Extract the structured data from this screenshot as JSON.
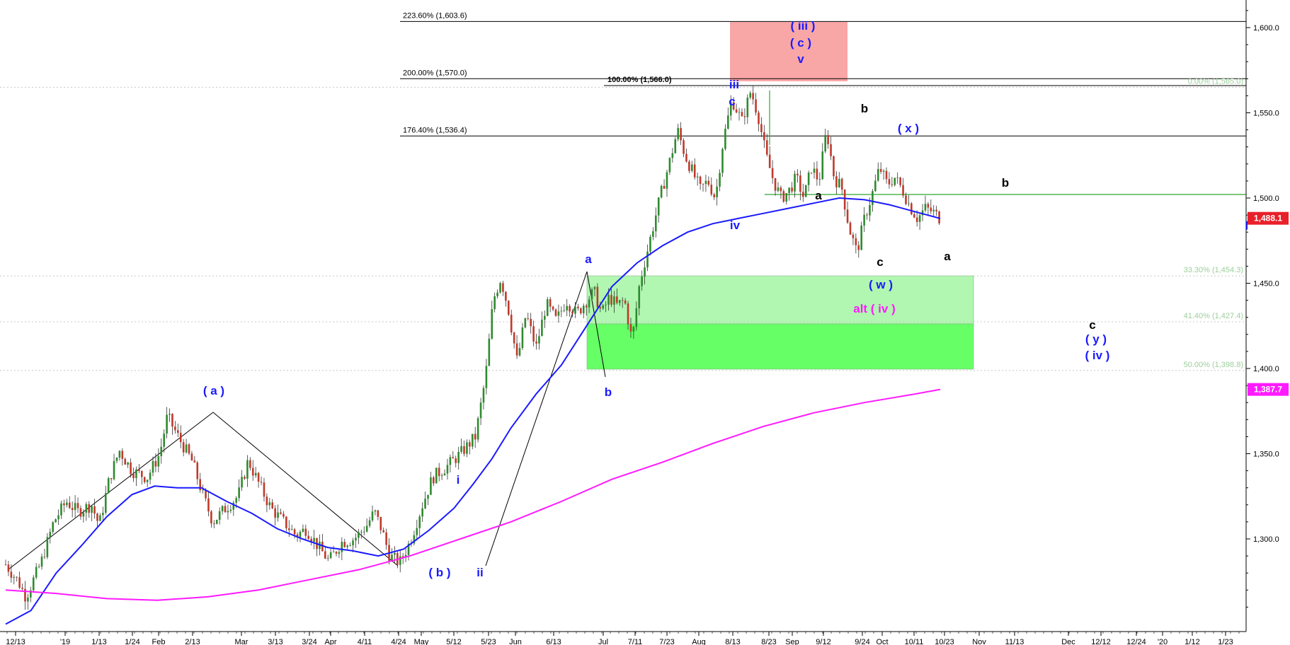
{
  "chart_data": {
    "type": "candlestick",
    "title": "",
    "xlabel": "",
    "ylabel": "",
    "ylim": [
      1250,
      1620
    ],
    "y_ticks": [
      "1,300.0",
      "1,350.0",
      "1,400.0",
      "1,450.0",
      "1,500.0",
      "1,550.0",
      "1,600.0"
    ],
    "x_ticks": [
      "12/13",
      "'19",
      "1/13",
      "1/24",
      "Feb",
      "2/13",
      "Mar",
      "3/13",
      "3/24",
      "Apr",
      "4/11",
      "4/24",
      "May",
      "5/12",
      "5/23",
      "Jun",
      "6/13",
      "Jul",
      "7/11",
      "7/23",
      "Aug",
      "8/13",
      "8/23",
      "Sep",
      "9/12",
      "9/24",
      "Oct",
      "10/11",
      "10/23",
      "Nov",
      "11/13",
      "Dec",
      "12/12",
      "12/24",
      "'20",
      "1/12",
      "1/23"
    ],
    "price_path": [
      [
        0,
        1285
      ],
      [
        10,
        1275
      ],
      [
        16,
        1266
      ],
      [
        28,
        1286
      ],
      [
        38,
        1310
      ],
      [
        48,
        1322
      ],
      [
        57,
        1316
      ],
      [
        68,
        1320
      ],
      [
        74,
        1308
      ],
      [
        82,
        1335
      ],
      [
        90,
        1352
      ],
      [
        100,
        1340
      ],
      [
        112,
        1336
      ],
      [
        122,
        1350
      ],
      [
        128,
        1372
      ],
      [
        138,
        1358
      ],
      [
        148,
        1345
      ],
      [
        156,
        1326
      ],
      [
        164,
        1310
      ],
      [
        174,
        1318
      ],
      [
        184,
        1325
      ],
      [
        192,
        1346
      ],
      [
        202,
        1330
      ],
      [
        210,
        1318
      ],
      [
        220,
        1310
      ],
      [
        230,
        1302
      ],
      [
        238,
        1306
      ],
      [
        248,
        1295
      ],
      [
        256,
        1287
      ],
      [
        266,
        1298
      ],
      [
        276,
        1300
      ],
      [
        286,
        1308
      ],
      [
        292,
        1316
      ],
      [
        298,
        1305
      ],
      [
        304,
        1290
      ],
      [
        312,
        1286
      ],
      [
        320,
        1298
      ],
      [
        330,
        1320
      ],
      [
        338,
        1336
      ],
      [
        350,
        1343
      ],
      [
        360,
        1350
      ],
      [
        372,
        1360
      ],
      [
        380,
        1395
      ],
      [
        386,
        1440
      ],
      [
        392,
        1453
      ],
      [
        398,
        1435
      ],
      [
        405,
        1404
      ],
      [
        412,
        1432
      ],
      [
        420,
        1412
      ],
      [
        428,
        1438
      ],
      [
        436,
        1428
      ],
      [
        444,
        1440
      ],
      [
        452,
        1432
      ],
      [
        460,
        1440
      ],
      [
        466,
        1445
      ],
      [
        472,
        1432
      ],
      [
        478,
        1442
      ],
      [
        484,
        1437
      ],
      [
        490,
        1440
      ],
      [
        496,
        1416
      ],
      [
        502,
        1450
      ],
      [
        510,
        1475
      ],
      [
        518,
        1500
      ],
      [
        526,
        1522
      ],
      [
        532,
        1540
      ],
      [
        538,
        1525
      ],
      [
        544,
        1515
      ],
      [
        550,
        1505
      ],
      [
        556,
        1510
      ],
      [
        562,
        1500
      ],
      [
        568,
        1533
      ],
      [
        575,
        1558
      ],
      [
        583,
        1545
      ],
      [
        590,
        1563
      ],
      [
        596,
        1548
      ],
      [
        602,
        1525
      ],
      [
        608,
        1510
      ],
      [
        614,
        1500
      ],
      [
        620,
        1504
      ],
      [
        626,
        1512
      ],
      [
        632,
        1500
      ],
      [
        638,
        1518
      ],
      [
        644,
        1510
      ],
      [
        650,
        1540
      ],
      [
        656,
        1512
      ],
      [
        662,
        1506
      ],
      [
        668,
        1482
      ],
      [
        674,
        1468
      ],
      [
        680,
        1488
      ],
      [
        686,
        1502
      ],
      [
        692,
        1518
      ],
      [
        698,
        1508
      ],
      [
        704,
        1512
      ],
      [
        710,
        1505
      ],
      [
        716,
        1495
      ],
      [
        722,
        1488
      ],
      [
        728,
        1494
      ],
      [
        734,
        1492
      ],
      [
        740,
        1488
      ]
    ],
    "series": [
      {
        "name": "",
        "color": "#1a1aff",
        "points": [
          [
            0,
            1250
          ],
          [
            20,
            1258
          ],
          [
            40,
            1280
          ],
          [
            60,
            1296
          ],
          [
            80,
            1313
          ],
          [
            100,
            1326
          ],
          [
            118,
            1331
          ],
          [
            136,
            1330
          ],
          [
            155,
            1330
          ],
          [
            175,
            1322
          ],
          [
            195,
            1315
          ],
          [
            215,
            1306
          ],
          [
            235,
            1300
          ],
          [
            255,
            1295
          ],
          [
            275,
            1293
          ],
          [
            295,
            1290
          ],
          [
            315,
            1294
          ],
          [
            335,
            1305
          ],
          [
            355,
            1318
          ],
          [
            370,
            1332
          ],
          [
            385,
            1347
          ],
          [
            400,
            1365
          ],
          [
            420,
            1385
          ],
          [
            440,
            1402
          ],
          [
            460,
            1425
          ],
          [
            480,
            1448
          ],
          [
            500,
            1462
          ],
          [
            520,
            1472
          ],
          [
            540,
            1480
          ],
          [
            560,
            1485
          ],
          [
            580,
            1488
          ],
          [
            600,
            1491
          ],
          [
            620,
            1494
          ],
          [
            640,
            1497
          ],
          [
            660,
            1500
          ],
          [
            680,
            1499
          ],
          [
            700,
            1496
          ],
          [
            720,
            1492
          ],
          [
            740,
            1488
          ]
        ]
      },
      {
        "name": "",
        "color": "#ff1aff",
        "points": [
          [
            0,
            1270
          ],
          [
            40,
            1268
          ],
          [
            80,
            1265
          ],
          [
            120,
            1264
          ],
          [
            160,
            1266
          ],
          [
            200,
            1270
          ],
          [
            240,
            1276
          ],
          [
            280,
            1282
          ],
          [
            320,
            1290
          ],
          [
            360,
            1300
          ],
          [
            400,
            1310
          ],
          [
            440,
            1322
          ],
          [
            480,
            1335
          ],
          [
            520,
            1345
          ],
          [
            560,
            1356
          ],
          [
            600,
            1366
          ],
          [
            640,
            1374
          ],
          [
            680,
            1380
          ],
          [
            720,
            1385
          ],
          [
            740,
            1387.7
          ]
        ]
      }
    ],
    "fib_levels": [
      {
        "label": "223.60% (1,603.6)",
        "value": 1603.6,
        "color": "#000000"
      },
      {
        "label": "200.00% (1,570.0)",
        "value": 1570.0,
        "color": "#000000"
      },
      {
        "label": "100.00% (1,566.0)",
        "value": 1566.0,
        "color": "#000000"
      },
      {
        "label": "176.40% (1,536.4)",
        "value": 1536.4,
        "color": "#000000"
      },
      {
        "label": "0.00% (1,565.0)",
        "value": 1565.0,
        "color": "#9bcf9b"
      },
      {
        "label": "33.30% (1,454.3)",
        "value": 1454.3,
        "color": "#9bcf9b"
      },
      {
        "label": "41.40% (1,427.4)",
        "value": 1427.4,
        "color": "#9bcf9b"
      },
      {
        "label": "50.00% (1,398.8)",
        "value": 1398.8,
        "color": "#9bcf9b"
      }
    ],
    "price_flags": [
      {
        "label": "1,488.1",
        "value": 1488.1,
        "color": "#e8202a"
      },
      {
        "label": "1,387.7",
        "value": 1387.7,
        "color": "#ff1aff"
      }
    ],
    "wave_labels": [
      {
        "text": "( a )",
        "color": "#1a1aff"
      },
      {
        "text": "( b )",
        "color": "#1a1aff"
      },
      {
        "text": "i",
        "color": "#1a1aff"
      },
      {
        "text": "ii",
        "color": "#1a1aff"
      },
      {
        "text": "a",
        "color": "#1a1aff"
      },
      {
        "text": "b",
        "color": "#1a1aff"
      },
      {
        "text": "iii",
        "color": "#1a1aff"
      },
      {
        "text": "c",
        "color": "#1a1aff"
      },
      {
        "text": "iv",
        "color": "#1a1aff"
      },
      {
        "text": "( iii )",
        "color": "#1a1aff"
      },
      {
        "text": "( c )",
        "color": "#1a1aff"
      },
      {
        "text": "v",
        "color": "#1a1aff"
      },
      {
        "text": "a",
        "color": "#000000"
      },
      {
        "text": "b",
        "color": "#000000"
      },
      {
        "text": "c",
        "color": "#000000"
      },
      {
        "text": "( x )",
        "color": "#1a1aff"
      },
      {
        "text": "( w )",
        "color": "#1a1aff"
      },
      {
        "text": "alt ( iv )",
        "color": "#ff1aff"
      },
      {
        "text": "b",
        "color": "#000000"
      },
      {
        "text": "a",
        "color": "#000000"
      },
      {
        "text": "c",
        "color": "#000000"
      },
      {
        "text": "( y )",
        "color": "#1a1aff"
      },
      {
        "text": "( iv )",
        "color": "#1a1aff"
      }
    ]
  }
}
